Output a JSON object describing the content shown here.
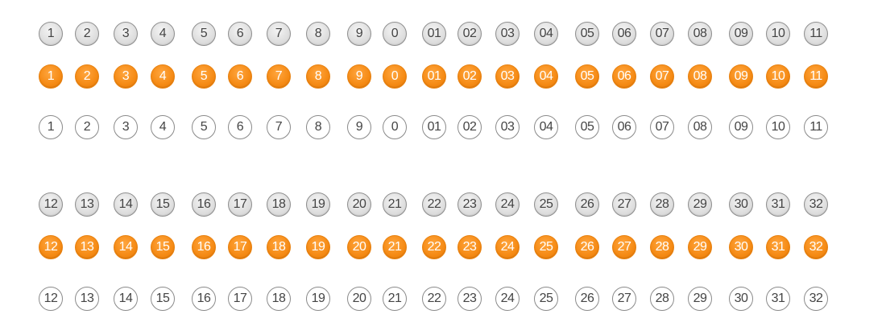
{
  "colors": {
    "selected_orange": "#f58a14",
    "unselected_gray": "#dedede",
    "outline_white": "#ffffff",
    "digit_dark": "#444444",
    "digit_light": "#ffffff"
  },
  "groups": [
    {
      "numbers": [
        "1",
        "2",
        "3",
        "4",
        "5",
        "6",
        "7",
        "8",
        "9",
        "0",
        "01",
        "02",
        "03",
        "04",
        "05",
        "06",
        "07",
        "08",
        "09",
        "10",
        "11"
      ],
      "rows": [
        {
          "style": "gray"
        },
        {
          "style": "orange"
        },
        {
          "style": "white"
        }
      ]
    },
    {
      "numbers": [
        "12",
        "13",
        "14",
        "15",
        "16",
        "17",
        "18",
        "19",
        "20",
        "21",
        "22",
        "23",
        "24",
        "25",
        "26",
        "27",
        "28",
        "29",
        "30",
        "31",
        "32"
      ],
      "rows": [
        {
          "style": "gray"
        },
        {
          "style": "orange"
        },
        {
          "style": "white"
        }
      ]
    }
  ]
}
